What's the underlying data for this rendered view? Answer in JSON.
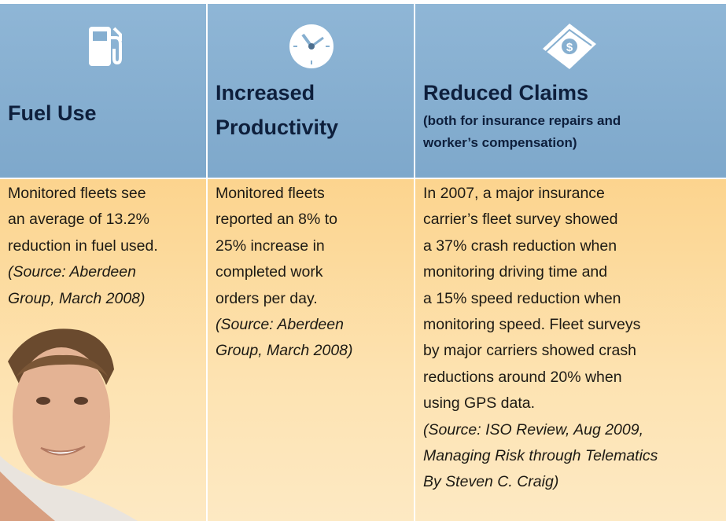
{
  "columns": [
    {
      "title": [
        "Fuel Use"
      ],
      "subtitle": [],
      "body": [
        "Monitored fleets see",
        "an average of 13.2%",
        "reduction in fuel used."
      ],
      "source": [
        "(Source: Aberdeen",
        "Group, March 2008)"
      ]
    },
    {
      "title": [
        "Increased",
        "Productivity"
      ],
      "subtitle": [],
      "body": [
        "Monitored fleets",
        "reported an 8% to",
        "25% increase in",
        "completed work",
        "orders per day."
      ],
      "source": [
        "(Source: Aberdeen",
        "Group, March 2008)"
      ]
    },
    {
      "title": [
        "Reduced Claims"
      ],
      "subtitle": [
        "(both for insurance repairs and",
        "worker’s compensation)"
      ],
      "body": [
        "In 2007, a major insurance",
        "carrier’s fleet survey showed",
        "a 37% crash reduction when",
        "monitoring driving time and",
        "a 15% speed reduction when",
        "monitoring speed. Fleet surveys",
        "by major carriers showed crash",
        "reductions around 20% when",
        "using GPS data."
      ],
      "source": [
        "(Source: ISO Review, Aug 2009,",
        "Managing Risk through Telematics",
        "By Steven C. Craig)"
      ]
    }
  ]
}
